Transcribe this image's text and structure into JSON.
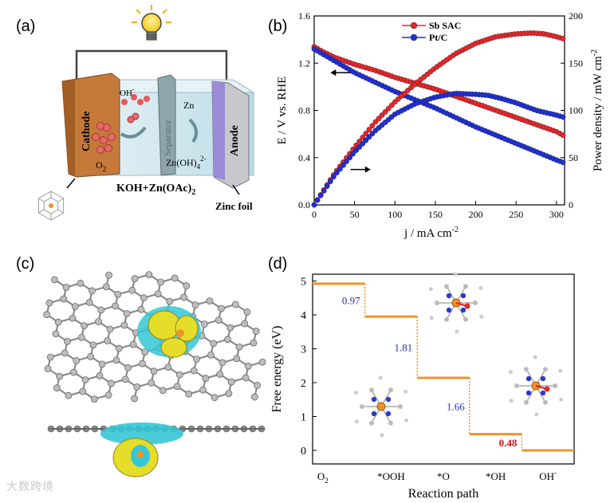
{
  "panels": {
    "a": {
      "label": "(a)",
      "cathode": "Cathode",
      "separator": "Separator",
      "anode": "Anode",
      "oh": "OH",
      "oh_sup": "-",
      "o2": "O",
      "o2_sub": "2",
      "zn": "Zn",
      "znoh_a": "Zn(OH)",
      "znoh_sub": "4",
      "znoh_sup": "2-",
      "electrolyte_a": "KOH+Zn(OAc)",
      "electrolyte_sub": "2",
      "zinc_foil": "Zinc foil"
    },
    "b": {
      "label": "(b)"
    },
    "c": {
      "label": "(c)"
    },
    "d": {
      "label": "(d)"
    }
  },
  "colors": {
    "red": "#e8262b",
    "blue": "#1f2fd6",
    "orange": "#f0932a",
    "cathode": "#c57a3a",
    "electrolyte": "#cfe6ee"
  },
  "chart_data": [
    {
      "type": "line",
      "panel": "b",
      "xlabel": "j / mA cm",
      "xlabel_sup": "-2",
      "ylabel": "E / V vs. RHE",
      "y2label": "Power density / mW cm",
      "y2label_sup": "-2",
      "xlim": [
        0,
        310
      ],
      "ylim": [
        0,
        1.6
      ],
      "y2lim": [
        0,
        200
      ],
      "xticks": [
        "0",
        "50",
        "100",
        "150",
        "200",
        "250",
        "300"
      ],
      "yticks": [
        "0.0",
        "0.4",
        "0.8",
        "1.2",
        "1.6"
      ],
      "y2ticks": [
        "0",
        "50",
        "100",
        "150",
        "200"
      ],
      "legend": [
        "Sb SAC",
        "Pt/C"
      ],
      "series": [
        {
          "name": "Sb SAC (E)",
          "axis": "left",
          "x": [
            0,
            10,
            25,
            50,
            75,
            100,
            125,
            150,
            175,
            200,
            225,
            250,
            275,
            300,
            308
          ],
          "y": [
            1.34,
            1.3,
            1.25,
            1.19,
            1.14,
            1.08,
            1.03,
            0.98,
            0.92,
            0.86,
            0.8,
            0.74,
            0.68,
            0.62,
            0.59
          ]
        },
        {
          "name": "Pt/C (E)",
          "axis": "left",
          "x": [
            0,
            10,
            25,
            50,
            75,
            100,
            125,
            150,
            175,
            200,
            225,
            250,
            275,
            300,
            308
          ],
          "y": [
            1.32,
            1.28,
            1.22,
            1.12,
            1.04,
            0.96,
            0.89,
            0.82,
            0.74,
            0.66,
            0.59,
            0.52,
            0.45,
            0.38,
            0.36
          ]
        },
        {
          "name": "Sb SAC (P)",
          "axis": "right",
          "x": [
            0,
            25,
            50,
            75,
            100,
            125,
            150,
            175,
            200,
            225,
            250,
            270,
            285,
            300,
            308
          ],
          "y": [
            0,
            33,
            61,
            87,
            109,
            128,
            145,
            160,
            171,
            178,
            181,
            182,
            181,
            178,
            176
          ]
        },
        {
          "name": "Pt/C (P)",
          "axis": "right",
          "x": [
            0,
            25,
            50,
            75,
            100,
            125,
            150,
            175,
            200,
            215,
            230,
            250,
            275,
            300,
            308
          ],
          "y": [
            0,
            31,
            56,
            78,
            96,
            107,
            114,
            118,
            117,
            116,
            113,
            108,
            100,
            95,
            93
          ]
        }
      ],
      "arrows": [
        "left",
        "right"
      ]
    },
    {
      "type": "step",
      "panel": "d",
      "ylabel": "Free energy (eV)",
      "xlabel": "Reaction path",
      "ylim": [
        -0.4,
        5.2
      ],
      "yticks": [
        "0",
        "1",
        "2",
        "3",
        "4",
        "5"
      ],
      "categories": [
        "O",
        "*OOH",
        "*O",
        "*OH",
        "OH"
      ],
      "category_sub": [
        "2",
        "",
        "",
        "",
        ""
      ],
      "category_sup": [
        "",
        "",
        "",
        "",
        "-"
      ],
      "levels": [
        4.92,
        3.95,
        2.14,
        0.48,
        0.0
      ],
      "step_labels": [
        "0.97",
        "1.81",
        "1.66",
        "0.48"
      ],
      "step_label_colors": [
        "#2630b5",
        "#2630b5",
        "#2630b5",
        "#d4141b"
      ]
    }
  ],
  "watermark": "大数跨境"
}
